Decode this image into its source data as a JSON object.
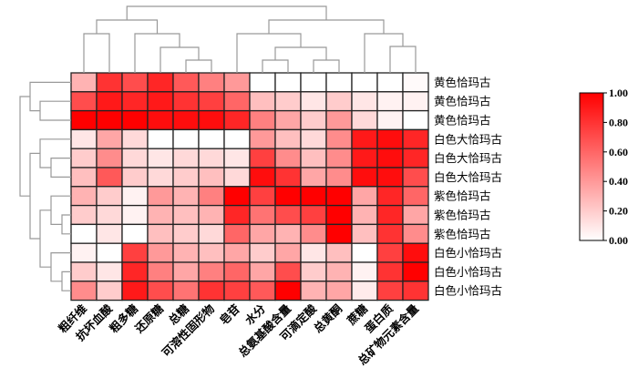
{
  "chart_data": {
    "type": "heatmap",
    "title": "",
    "columns": [
      "粗纤维",
      "抗坏血酸",
      "粗多糖",
      "还原糖",
      "总糖",
      "可溶性固形物",
      "皂苷",
      "水分",
      "总氨基酸含量",
      "可滴定酸",
      "总黄酮",
      "蔗糖",
      "蛋白质",
      "总矿物元素含量"
    ],
    "rows": [
      "黄色恰玛古",
      "黄色恰玛古",
      "黄色恰玛古",
      "白色大恰玛古",
      "白色大恰玛古",
      "白色大恰玛古",
      "紫色恰玛古",
      "紫色恰玛古",
      "紫色恰玛古",
      "白色小恰玛古",
      "白色小恰玛古",
      "白色小恰玛古"
    ],
    "values": [
      [
        0.3,
        0.8,
        0.7,
        0.85,
        0.65,
        0.5,
        0.4,
        0.0,
        0.0,
        0.0,
        0.0,
        0.0,
        0.0,
        0.02
      ],
      [
        0.7,
        0.9,
        0.85,
        0.9,
        0.8,
        0.75,
        0.6,
        0.25,
        0.2,
        0.1,
        0.2,
        0.1,
        0.05,
        0.05
      ],
      [
        1.0,
        1.0,
        1.0,
        0.95,
        0.95,
        0.95,
        0.85,
        0.5,
        0.35,
        0.2,
        0.4,
        0.15,
        0.05,
        0.0
      ],
      [
        0.1,
        0.35,
        0.15,
        0.0,
        0.0,
        0.0,
        0.0,
        0.4,
        0.25,
        0.15,
        0.45,
        0.9,
        0.95,
        0.85
      ],
      [
        0.2,
        0.45,
        0.15,
        0.1,
        0.15,
        0.15,
        0.1,
        0.75,
        0.45,
        0.25,
        0.45,
        0.9,
        0.95,
        0.85
      ],
      [
        0.25,
        0.65,
        0.2,
        0.15,
        0.2,
        0.25,
        0.15,
        0.95,
        0.8,
        0.35,
        0.45,
        0.95,
        0.95,
        0.7
      ],
      [
        0.3,
        0.2,
        0.05,
        0.4,
        0.3,
        0.5,
        1.0,
        0.75,
        1.0,
        1.0,
        1.0,
        0.35,
        0.85,
        0.6
      ],
      [
        0.2,
        0.15,
        0.05,
        0.3,
        0.25,
        0.3,
        0.85,
        0.55,
        0.7,
        0.75,
        1.0,
        0.3,
        0.85,
        0.35
      ],
      [
        0.0,
        0.1,
        0.0,
        0.25,
        0.2,
        0.15,
        0.6,
        0.35,
        0.3,
        0.45,
        1.0,
        0.25,
        0.8,
        0.45
      ],
      [
        0.05,
        0.0,
        0.75,
        0.4,
        0.3,
        0.25,
        0.35,
        0.2,
        0.35,
        0.1,
        0.25,
        0.0,
        0.75,
        0.95
      ],
      [
        0.2,
        0.1,
        0.85,
        0.5,
        0.35,
        0.5,
        0.6,
        0.35,
        0.7,
        0.2,
        0.3,
        0.05,
        0.8,
        1.0
      ],
      [
        0.45,
        0.2,
        0.9,
        0.7,
        0.55,
        0.8,
        0.75,
        0.65,
        1.0,
        0.3,
        0.35,
        0.08,
        0.75,
        0.8
      ]
    ],
    "colorbar": {
      "min": 0,
      "max": 1,
      "ticks": [
        "1.00",
        "0.80",
        "0.60",
        "0.40",
        "0.20",
        "0.00"
      ],
      "low_color": "#ffffff",
      "high_color": "#ff0000"
    },
    "row_dendrogram": true,
    "column_dendrogram": true
  }
}
